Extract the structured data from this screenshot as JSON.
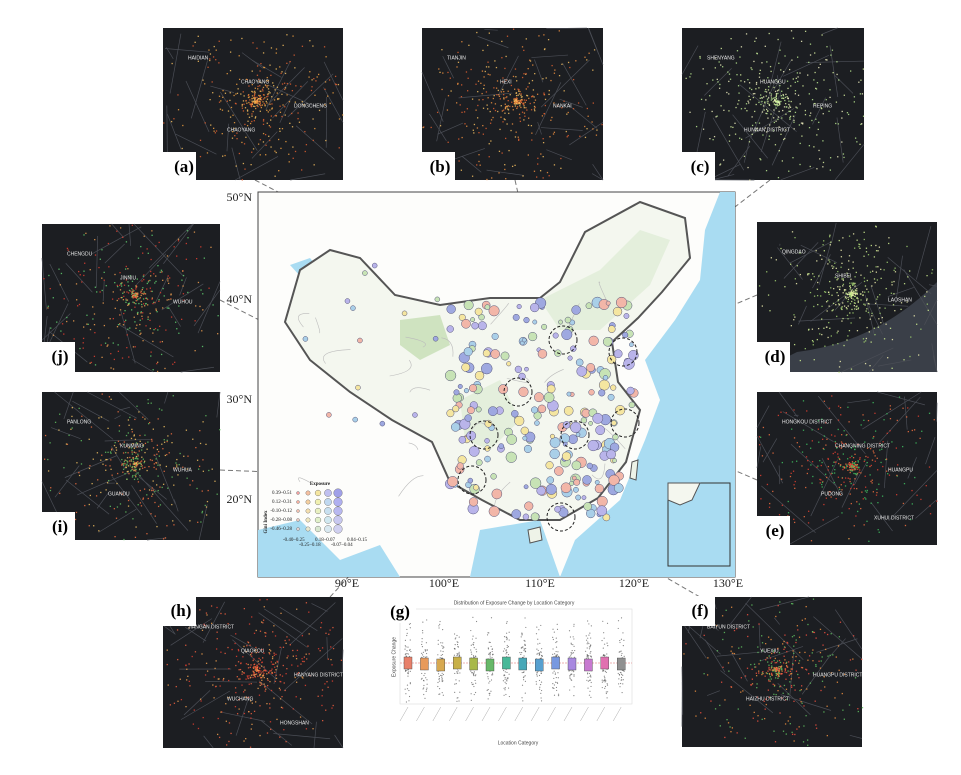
{
  "figure": {
    "map": {
      "lat_labels": [
        "50°N",
        "40°N",
        "30°N",
        "20°N"
      ],
      "lon_labels": [
        "90°E",
        "100°E",
        "110°E",
        "120°E",
        "130°E"
      ],
      "legend": {
        "title": "Exposure",
        "y_title": "Gini Index",
        "rows": [
          "0.39–0.51",
          "0.12–0.31",
          "-0.10–0.12",
          "-0.28–0.08",
          "-0.46–0.28"
        ],
        "cols": [
          "-0.40–0.25",
          "-0.25–0.18",
          "0.18–0.07",
          "-0.07–0.04",
          "0.04–0.15"
        ]
      }
    },
    "panels": [
      {
        "label": "(a)",
        "places": [
          "HAIDIAN",
          "CHAOYANG",
          "DONGCHENG",
          "CHAOYANG"
        ]
      },
      {
        "label": "(b)",
        "places": [
          "TIANJIN",
          "HEXI",
          "NANKAI"
        ]
      },
      {
        "label": "(c)",
        "places": [
          "SHENYANG",
          "HUANGGU",
          "HEPING",
          "HUNNAN DISTRICT"
        ]
      },
      {
        "label": "(d)",
        "places": [
          "QINGDAO",
          "SHIBEI",
          "LAOSHAN"
        ]
      },
      {
        "label": "(e)",
        "places": [
          "HONGKOU DISTRICT",
          "CHANGNING DISTRICT",
          "HUANGPU",
          "PUDONG",
          "XUHUI DISTRICT"
        ]
      },
      {
        "label": "(f)",
        "places": [
          "BAIYUN DISTRICT",
          "YUEXIU",
          "HUANGPU DISTRICT",
          "HAIZHU DISTRICT"
        ]
      },
      {
        "label": "(h)",
        "places": [
          "JIANGAN DISTRICT",
          "QIAOKOU",
          "HANYANG DISTRICT",
          "WUCHANG",
          "HONGSHAN"
        ]
      },
      {
        "label": "(i)",
        "places": [
          "PANLONG",
          "KUNMING",
          "WUHUA",
          "GUANDU"
        ]
      },
      {
        "label": "(j)",
        "places": [
          "CHENGDU",
          "JINNIU",
          "WUHOU"
        ]
      }
    ],
    "chart_g": {
      "label": "(g)",
      "title": "Distribution of Exposure Change by Location Category",
      "y_label": "Exposure Change",
      "x_label": "Location Category"
    }
  }
}
